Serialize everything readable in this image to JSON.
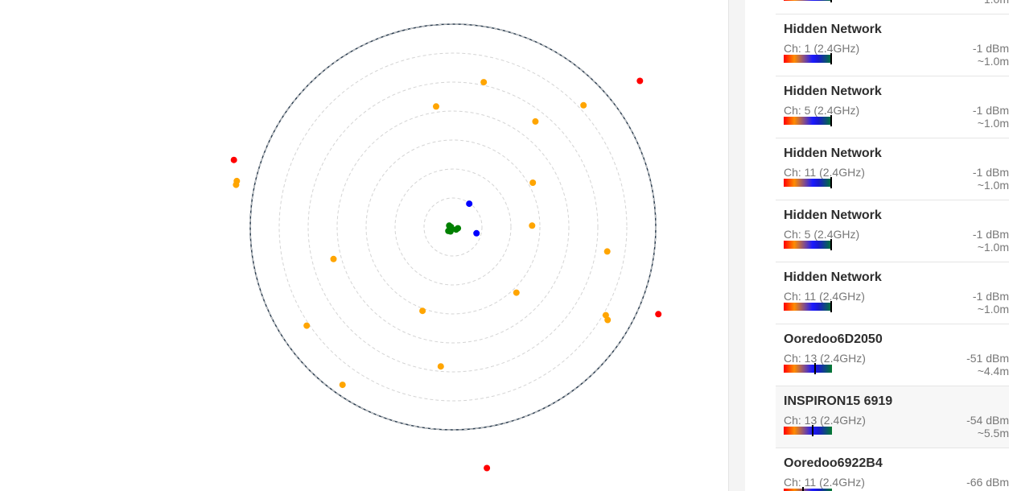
{
  "colors": {
    "ring_outer": "#2c3e50",
    "ring_inner": "#d4d4d4",
    "weak": "#ff0000",
    "medium": "#ffa500",
    "strong": "#0000ff",
    "very_strong": "#008000",
    "marker": "#000000"
  },
  "radar": {
    "rings": 7,
    "devices": [
      {
        "color": "very_strong",
        "angle": 180,
        "radius": 0.01
      },
      {
        "color": "very_strong",
        "angle": 200,
        "radius": 0.02
      },
      {
        "color": "very_strong",
        "angle": 140,
        "radius": 0.03
      },
      {
        "color": "very_strong",
        "angle": 40,
        "radius": 0.02
      },
      {
        "color": "very_strong",
        "angle": 15,
        "radius": 0.025
      },
      {
        "color": "very_strong",
        "angle": 120,
        "radius": 0.025
      },
      {
        "color": "strong",
        "angle": -55,
        "radius": 0.14
      },
      {
        "color": "strong",
        "angle": 15,
        "radius": 0.12
      },
      {
        "color": "medium",
        "angle": -78,
        "radius": 0.73
      },
      {
        "color": "medium",
        "angle": -98,
        "radius": 0.6
      },
      {
        "color": "medium",
        "angle": -52,
        "radius": 0.66
      },
      {
        "color": "medium",
        "angle": -43,
        "radius": 0.88
      },
      {
        "color": "medium",
        "angle": -29,
        "radius": 0.45
      },
      {
        "color": "medium",
        "angle": -1,
        "radius": 0.39
      },
      {
        "color": "medium",
        "angle": 9,
        "radius": 0.77
      },
      {
        "color": "medium",
        "angle": 30,
        "radius": 0.87
      },
      {
        "color": "medium",
        "angle": 31,
        "radius": 0.89
      },
      {
        "color": "medium",
        "angle": 46,
        "radius": 0.45
      },
      {
        "color": "medium",
        "angle": 110,
        "radius": 0.44
      },
      {
        "color": "medium",
        "angle": 95,
        "radius": 0.69
      },
      {
        "color": "medium",
        "angle": 146,
        "radius": 0.87
      },
      {
        "color": "medium",
        "angle": 165,
        "radius": 0.61
      },
      {
        "color": "medium",
        "angle": 125,
        "radius": 0.95
      },
      {
        "color": "medium",
        "angle": -169,
        "radius": 1.09
      },
      {
        "color": "medium",
        "angle": -168,
        "radius": 1.09
      },
      {
        "color": "weak",
        "angle": -163,
        "radius": 1.13
      },
      {
        "color": "weak",
        "angle": -38,
        "radius": 1.17
      },
      {
        "color": "weak",
        "angle": 23,
        "radius": 1.1
      },
      {
        "color": "weak",
        "angle": 82,
        "radius": 1.2
      }
    ]
  },
  "networks": [
    {
      "ssid": "",
      "channel": "",
      "rssi": "",
      "distance": "~1.0m",
      "signal": 0.99,
      "selected": false
    },
    {
      "ssid": "Hidden Network",
      "channel": "Ch: 1 (2.4GHz)",
      "rssi": "-1 dBm",
      "distance": "~1.0m",
      "signal": 0.99,
      "selected": false
    },
    {
      "ssid": "Hidden Network",
      "channel": "Ch: 5 (2.4GHz)",
      "rssi": "-1 dBm",
      "distance": "~1.0m",
      "signal": 0.99,
      "selected": false
    },
    {
      "ssid": "Hidden Network",
      "channel": "Ch: 11 (2.4GHz)",
      "rssi": "-1 dBm",
      "distance": "~1.0m",
      "signal": 0.99,
      "selected": false
    },
    {
      "ssid": "Hidden Network",
      "channel": "Ch: 5 (2.4GHz)",
      "rssi": "-1 dBm",
      "distance": "~1.0m",
      "signal": 0.99,
      "selected": false
    },
    {
      "ssid": "Hidden Network",
      "channel": "Ch: 11 (2.4GHz)",
      "rssi": "-1 dBm",
      "distance": "~1.0m",
      "signal": 0.99,
      "selected": false
    },
    {
      "ssid": "Ooredoo6D2050",
      "channel": "Ch: 13 (2.4GHz)",
      "rssi": "-51 dBm",
      "distance": "~4.4m",
      "signal": 0.65,
      "selected": false
    },
    {
      "ssid": "INSPIRON15 6919",
      "channel": "Ch: 13 (2.4GHz)",
      "rssi": "-54 dBm",
      "distance": "~5.5m",
      "signal": 0.6,
      "selected": true
    },
    {
      "ssid": "Ooredoo6922B4",
      "channel": "Ch: 11 (2.4GHz)",
      "rssi": "-66 dBm",
      "distance": "",
      "signal": 0.4,
      "selected": false
    }
  ]
}
